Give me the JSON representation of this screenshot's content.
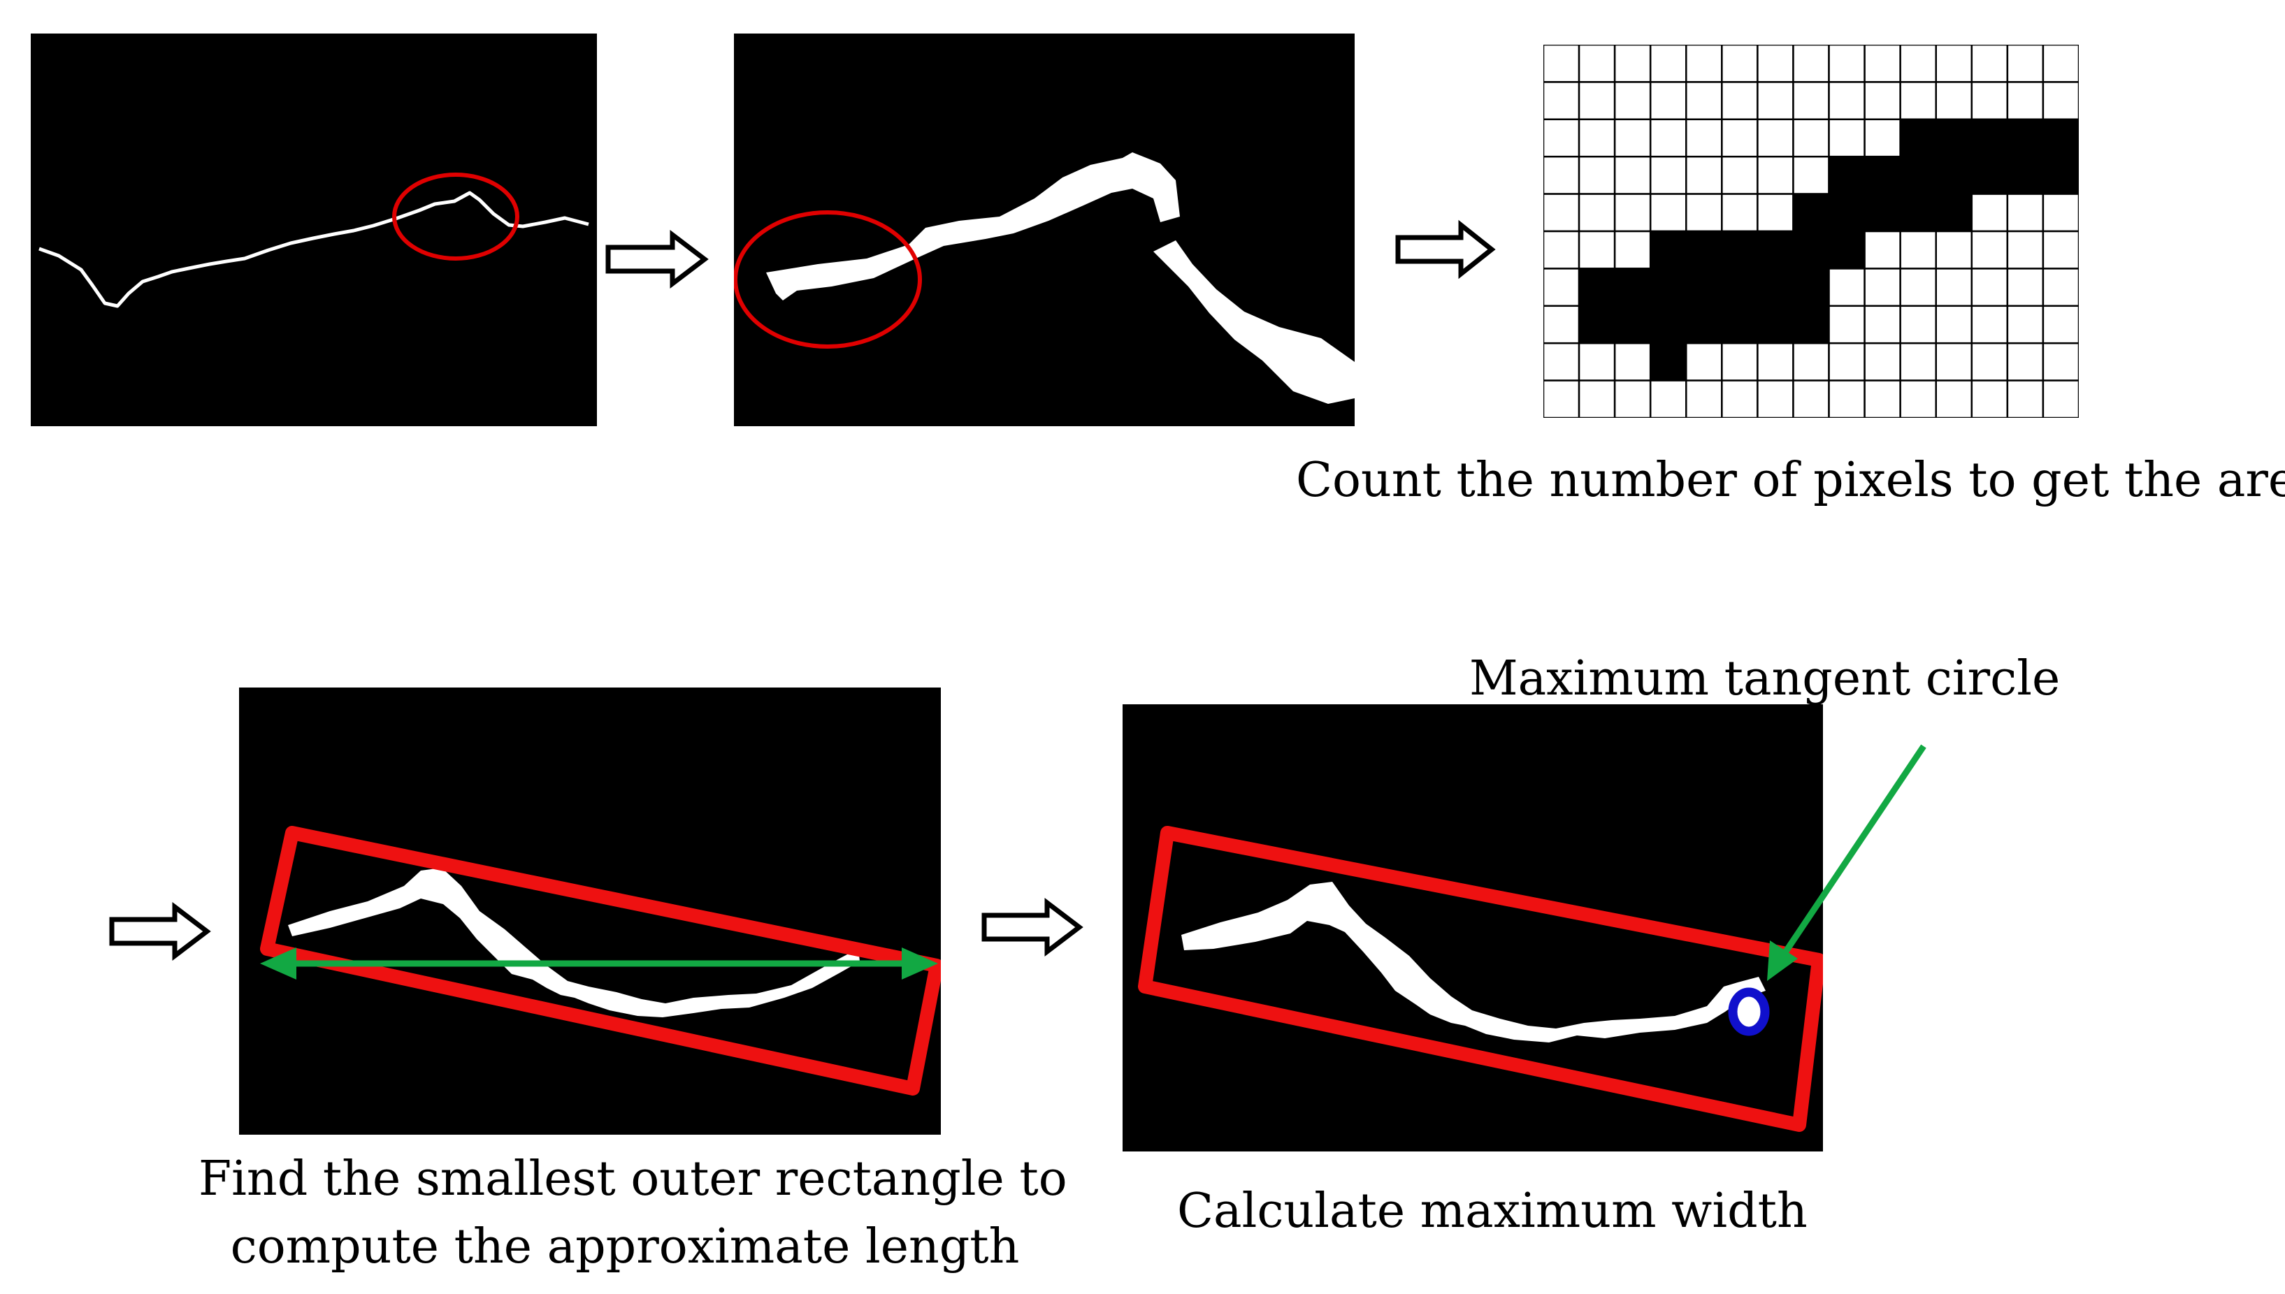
{
  "captions": {
    "area": "Count the number of pixels to get the area",
    "tangent_circle": "Maximum tangent circle",
    "length_line1": "Find the smallest outer rectangle to",
    "length_line2": "compute the approximate length",
    "width": "Calculate maximum width"
  },
  "icons": [
    "arrow-right-icon"
  ],
  "colors": {
    "background": "#000000",
    "crack": "#ffffff",
    "highlight_circle": "#e00000",
    "bounding_rect": "#ee1111",
    "length_arrow": "#12a843",
    "tangent_circle": "#1010cc",
    "grid_line": "#000000"
  }
}
